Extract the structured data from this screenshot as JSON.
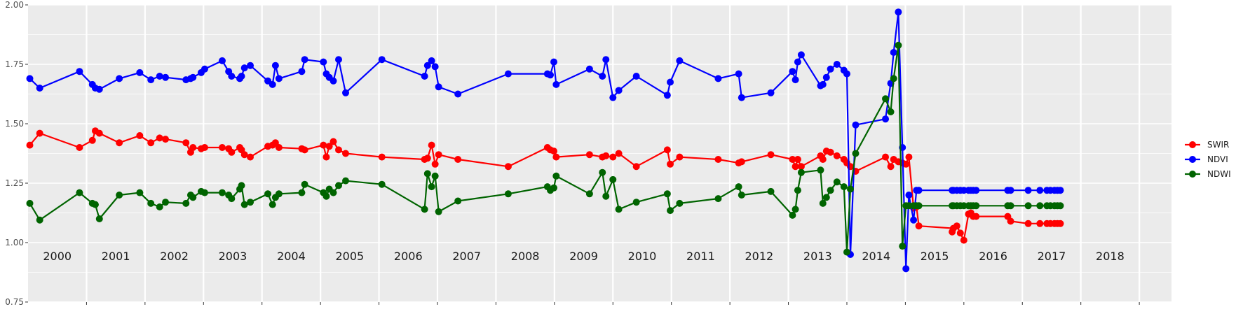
{
  "colors": {
    "panel": "#ebebeb",
    "grid": "#ffffff",
    "SWIR": "#ff0000",
    "NDVI": "#0000ff",
    "NDWI": "#006400"
  },
  "chart_data": {
    "type": "line",
    "xlim": [
      1999.5,
      2019.05
    ],
    "ylim": [
      0.75,
      2.0
    ],
    "yticks": [
      "0.75",
      "1.00",
      "1.25",
      "1.50",
      "1.75",
      "2.00"
    ],
    "year_labels": [
      "2000",
      "2001",
      "2002",
      "2003",
      "2004",
      "2005",
      "2006",
      "2007",
      "2008",
      "2009",
      "2010",
      "2011",
      "2012",
      "2013",
      "2014",
      "2015",
      "2016",
      "2017",
      "2018"
    ],
    "grid": "on",
    "legend_position": "right",
    "legend": [
      "SWIR",
      "NDVI",
      "NDWI"
    ],
    "series": [
      {
        "name": "SWIR",
        "x": [
          1999.53,
          1999.7,
          2000.38,
          2000.6,
          2000.65,
          2000.72,
          2001.06,
          2001.41,
          2001.6,
          2001.75,
          2001.85,
          2002.2,
          2002.28,
          2002.32,
          2002.46,
          2002.52,
          2002.82,
          2002.93,
          2002.98,
          2003.12,
          2003.15,
          2003.2,
          2003.3,
          2003.6,
          2003.68,
          2003.73,
          2003.79,
          2004.18,
          2004.23,
          2004.55,
          2004.6,
          2004.65,
          2004.72,
          2004.81,
          2004.93,
          2005.55,
          2006.28,
          2006.33,
          2006.4,
          2006.46,
          2006.52,
          2006.85,
          2007.71,
          2008.38,
          2008.43,
          2008.49,
          2008.53,
          2009.1,
          2009.32,
          2009.38,
          2009.5,
          2009.6,
          2009.9,
          2010.43,
          2010.48,
          2010.64,
          2011.3,
          2011.65,
          2011.7,
          2012.2,
          2012.57,
          2012.62,
          2012.66,
          2012.72,
          2013.05,
          2013.09,
          2013.15,
          2013.22,
          2013.33,
          2013.45,
          2013.5,
          2013.56,
          2013.65,
          2014.16,
          2014.25,
          2014.3,
          2014.38,
          2014.45,
          2014.51,
          2014.56,
          2014.64,
          2014.69,
          2014.73,
          2015.32,
          2015.3,
          2015.38,
          2015.44,
          2015.5,
          2015.58,
          2015.62,
          2015.66,
          2015.71,
          2016.25,
          2016.3,
          2016.6,
          2016.8,
          2016.92,
          2016.98,
          2017.05,
          2017.1,
          2017.15
        ],
        "y": [
          1.41,
          1.46,
          1.4,
          1.43,
          1.47,
          1.46,
          1.42,
          1.45,
          1.42,
          1.44,
          1.435,
          1.42,
          1.38,
          1.4,
          1.395,
          1.4,
          1.4,
          1.395,
          1.38,
          1.4,
          1.39,
          1.37,
          1.36,
          1.405,
          1.41,
          1.42,
          1.4,
          1.395,
          1.39,
          1.41,
          1.36,
          1.405,
          1.425,
          1.39,
          1.375,
          1.36,
          1.35,
          1.355,
          1.41,
          1.33,
          1.37,
          1.35,
          1.32,
          1.4,
          1.39,
          1.385,
          1.36,
          1.37,
          1.36,
          1.365,
          1.36,
          1.375,
          1.32,
          1.39,
          1.33,
          1.36,
          1.35,
          1.335,
          1.34,
          1.37,
          1.35,
          1.32,
          1.35,
          1.32,
          1.365,
          1.35,
          1.385,
          1.38,
          1.365,
          1.35,
          1.335,
          1.32,
          1.3,
          1.36,
          1.32,
          1.35,
          1.34,
          1.335,
          1.33,
          1.36,
          1.145,
          1.15,
          1.07,
          1.06,
          1.045,
          1.07,
          1.04,
          1.01,
          1.12,
          1.125,
          1.11,
          1.11,
          1.11,
          1.09,
          1.08,
          1.08,
          1.08,
          1.08,
          1.08,
          1.08,
          1.08
        ],
        "x_note": ""
      },
      {
        "name": "NDVI",
        "x": [
          1999.53,
          1999.7,
          2000.38,
          2000.6,
          2000.65,
          2000.72,
          2001.06,
          2001.41,
          2001.6,
          2001.75,
          2001.85,
          2002.2,
          2002.28,
          2002.32,
          2002.46,
          2002.52,
          2002.82,
          2002.93,
          2002.98,
          2003.12,
          2003.15,
          2003.2,
          2003.3,
          2003.6,
          2003.68,
          2003.73,
          2003.79,
          2004.18,
          2004.23,
          2004.55,
          2004.6,
          2004.65,
          2004.72,
          2004.81,
          2004.93,
          2005.55,
          2006.28,
          2006.33,
          2006.4,
          2006.46,
          2006.52,
          2006.85,
          2007.71,
          2008.38,
          2008.43,
          2008.49,
          2008.53,
          2009.1,
          2009.32,
          2009.38,
          2009.5,
          2009.6,
          2009.9,
          2010.43,
          2010.48,
          2010.64,
          2011.3,
          2011.65,
          2011.7,
          2012.2,
          2012.57,
          2012.62,
          2012.66,
          2012.72,
          2013.05,
          2013.09,
          2013.15,
          2013.22,
          2013.33,
          2013.45,
          2013.5,
          2013.56,
          2013.65,
          2014.16,
          2014.25,
          2014.3,
          2014.38,
          2014.45,
          2014.51,
          2014.56,
          2014.64,
          2014.69,
          2014.73,
          2015.32,
          2015.3,
          2015.38,
          2015.44,
          2015.5,
          2015.58,
          2015.62,
          2015.66,
          2015.71,
          2016.25,
          2016.3,
          2016.6,
          2016.8,
          2016.92,
          2016.98,
          2017.05,
          2017.1,
          2017.15
        ],
        "y": [
          1.69,
          1.65,
          1.72,
          1.665,
          1.65,
          1.645,
          1.69,
          1.715,
          1.685,
          1.7,
          1.695,
          1.685,
          1.69,
          1.695,
          1.715,
          1.73,
          1.765,
          1.72,
          1.7,
          1.69,
          1.7,
          1.735,
          1.745,
          1.68,
          1.665,
          1.745,
          1.69,
          1.72,
          1.77,
          1.76,
          1.71,
          1.695,
          1.68,
          1.77,
          1.63,
          1.77,
          1.7,
          1.745,
          1.765,
          1.74,
          1.655,
          1.625,
          1.71,
          1.71,
          1.705,
          1.76,
          1.665,
          1.73,
          1.7,
          1.77,
          1.61,
          1.64,
          1.7,
          1.62,
          1.675,
          1.765,
          1.69,
          1.71,
          1.61,
          1.63,
          1.72,
          1.685,
          1.76,
          1.79,
          1.66,
          1.665,
          1.695,
          1.73,
          1.75,
          1.725,
          1.71,
          0.95,
          1.495,
          1.52,
          1.67,
          1.8,
          1.97,
          1.4,
          0.89,
          1.2,
          1.095,
          1.22,
          1.22,
          1.22,
          1.22,
          1.22,
          1.22,
          1.22,
          1.22,
          1.22,
          1.22,
          1.22,
          1.22,
          1.22,
          1.22,
          1.22,
          1.22,
          1.22,
          1.22,
          1.22,
          1.22
        ],
        "x_note": ""
      },
      {
        "name": "NDWI",
        "x": [
          1999.53,
          1999.7,
          2000.38,
          2000.6,
          2000.65,
          2000.72,
          2001.06,
          2001.41,
          2001.6,
          2001.75,
          2001.85,
          2002.2,
          2002.28,
          2002.32,
          2002.46,
          2002.52,
          2002.82,
          2002.93,
          2002.98,
          2003.12,
          2003.15,
          2003.2,
          2003.3,
          2003.6,
          2003.68,
          2003.73,
          2003.79,
          2004.18,
          2004.23,
          2004.55,
          2004.6,
          2004.65,
          2004.72,
          2004.81,
          2004.93,
          2005.55,
          2006.28,
          2006.33,
          2006.4,
          2006.46,
          2006.52,
          2006.85,
          2007.71,
          2008.38,
          2008.43,
          2008.49,
          2008.53,
          2009.1,
          2009.32,
          2009.38,
          2009.5,
          2009.6,
          2009.9,
          2010.43,
          2010.48,
          2010.64,
          2011.3,
          2011.65,
          2011.7,
          2012.2,
          2012.57,
          2012.62,
          2012.66,
          2012.72,
          2013.05,
          2013.09,
          2013.15,
          2013.22,
          2013.33,
          2013.45,
          2013.5,
          2013.56,
          2013.65,
          2014.16,
          2014.25,
          2014.3,
          2014.38,
          2014.45,
          2014.51,
          2014.56,
          2014.64,
          2014.69,
          2014.73,
          2015.32,
          2015.3,
          2015.38,
          2015.44,
          2015.5,
          2015.58,
          2015.62,
          2015.66,
          2015.71,
          2016.25,
          2016.3,
          2016.6,
          2016.8,
          2016.92,
          2016.98,
          2017.05,
          2017.1,
          2017.15
        ],
        "y": [
          1.165,
          1.095,
          1.21,
          1.165,
          1.16,
          1.1,
          1.2,
          1.21,
          1.165,
          1.15,
          1.17,
          1.165,
          1.2,
          1.19,
          1.215,
          1.21,
          1.21,
          1.2,
          1.185,
          1.225,
          1.24,
          1.16,
          1.17,
          1.205,
          1.16,
          1.19,
          1.205,
          1.21,
          1.245,
          1.21,
          1.195,
          1.225,
          1.21,
          1.24,
          1.26,
          1.245,
          1.14,
          1.29,
          1.235,
          1.28,
          1.13,
          1.175,
          1.205,
          1.235,
          1.22,
          1.23,
          1.28,
          1.205,
          1.295,
          1.195,
          1.265,
          1.14,
          1.17,
          1.205,
          1.135,
          1.165,
          1.185,
          1.235,
          1.2,
          1.215,
          1.115,
          1.14,
          1.22,
          1.295,
          1.305,
          1.165,
          1.19,
          1.22,
          1.255,
          1.235,
          0.96,
          1.225,
          1.375,
          1.605,
          1.55,
          1.69,
          1.83,
          0.985,
          1.155,
          1.155,
          1.155,
          1.155,
          1.155,
          1.155,
          1.155,
          1.155,
          1.155,
          1.155,
          1.155,
          1.155,
          1.155,
          1.155,
          1.155,
          1.155,
          1.155,
          1.155,
          1.155,
          1.155,
          1.155,
          1.155,
          1.155
        ],
        "x_note": ""
      }
    ]
  }
}
